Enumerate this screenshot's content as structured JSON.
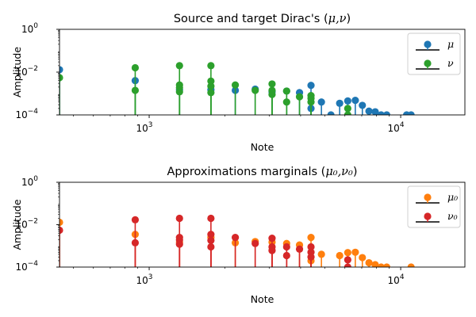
{
  "chart_data": [
    {
      "type": "stem",
      "title_main": "Source and target Dirac's (",
      "title_math": "μ,ν",
      "title_end": ")",
      "xlabel": "Note",
      "ylabel": "Amplitude",
      "xscale": "log",
      "yscale": "log",
      "xlim": [
        440,
        18000
      ],
      "ylim": [
        0.0001,
        1
      ],
      "xticks": [
        {
          "v": 1000,
          "base": "10",
          "exp": "3"
        },
        {
          "v": 10000,
          "base": "10",
          "exp": "4"
        }
      ],
      "yticks": [
        {
          "v": 0.0001,
          "base": "10",
          "exp": "−4"
        },
        {
          "v": 0.01,
          "base": "10",
          "exp": "−2"
        },
        {
          "v": 1,
          "base": "10",
          "exp": "0"
        }
      ],
      "legend_position": "top-right",
      "series": [
        {
          "name": "μ",
          "color": "#1f77b4",
          "points": [
            [
              440,
              0.013
            ],
            [
              880,
              0.004
            ],
            [
              1320,
              0.0015
            ],
            [
              1760,
              0.0015
            ],
            [
              2200,
              0.0014
            ],
            [
              2640,
              0.0016
            ],
            [
              3080,
              0.0012
            ],
            [
              3520,
              0.0013
            ],
            [
              3960,
              0.0011
            ],
            [
              4400,
              0.0024
            ],
            [
              4400,
              0.0002
            ],
            [
              4840,
              0.0004
            ],
            [
              5280,
              0.0001
            ],
            [
              5720,
              0.00035
            ],
            [
              6160,
              0.00045
            ],
            [
              6600,
              0.00048
            ],
            [
              7040,
              0.00028
            ],
            [
              7480,
              0.00015
            ],
            [
              7920,
              0.00014
            ],
            [
              8360,
              0.0001
            ],
            [
              8800,
              0.0001
            ],
            [
              10560,
              0.0001
            ],
            [
              11000,
              0.0001
            ]
          ]
        },
        {
          "name": "ν",
          "color": "#2ca02c",
          "points": [
            [
              440,
              0.0055
            ],
            [
              880,
              0.016
            ],
            [
              880,
              0.0014
            ],
            [
              1320,
              0.02
            ],
            [
              1320,
              0.0025
            ],
            [
              1320,
              0.0019
            ],
            [
              1320,
              0.0012
            ],
            [
              1760,
              0.02
            ],
            [
              1760,
              0.0038
            ],
            [
              1760,
              0.0022
            ],
            [
              1760,
              0.0011
            ],
            [
              2200,
              0.0025
            ],
            [
              2640,
              0.0014
            ],
            [
              3080,
              0.0028
            ],
            [
              3080,
              0.0014
            ],
            [
              3080,
              0.0009
            ],
            [
              3520,
              0.0013
            ],
            [
              3520,
              0.0004
            ],
            [
              3960,
              0.0007
            ],
            [
              4400,
              0.0008
            ],
            [
              4400,
              0.0006
            ],
            [
              4400,
              0.0004
            ],
            [
              6160,
              0.0002
            ],
            [
              6160,
              0.0001
            ]
          ]
        }
      ]
    },
    {
      "type": "stem",
      "title_main": "Approximations marginals (",
      "title_math": "μ₀,ν₀",
      "title_end": ")",
      "xlabel": "Note",
      "ylabel": "Amplitude",
      "xscale": "log",
      "yscale": "log",
      "xlim": [
        440,
        18000
      ],
      "ylim": [
        0.0001,
        1
      ],
      "xticks": [
        {
          "v": 1000,
          "base": "10",
          "exp": "3"
        },
        {
          "v": 10000,
          "base": "10",
          "exp": "4"
        }
      ],
      "yticks": [
        {
          "v": 0.0001,
          "base": "10",
          "exp": "−4"
        },
        {
          "v": 0.01,
          "base": "10",
          "exp": "−2"
        },
        {
          "v": 1,
          "base": "10",
          "exp": "0"
        }
      ],
      "legend_position": "top-right",
      "series": [
        {
          "name": "μ₀",
          "color": "#ff7f0e",
          "points": [
            [
              440,
              0.013
            ],
            [
              880,
              0.0035
            ],
            [
              1320,
              0.0015
            ],
            [
              1760,
              0.0025
            ],
            [
              2200,
              0.0014
            ],
            [
              2640,
              0.0016
            ],
            [
              3080,
              0.0015
            ],
            [
              3520,
              0.0013
            ],
            [
              3960,
              0.0011
            ],
            [
              4400,
              0.0025
            ],
            [
              4400,
              0.0002
            ],
            [
              4840,
              0.0004
            ],
            [
              5720,
              0.00035
            ],
            [
              6160,
              0.00048
            ],
            [
              6600,
              0.0005
            ],
            [
              7040,
              0.00028
            ],
            [
              7480,
              0.00016
            ],
            [
              7920,
              0.00013
            ],
            [
              8360,
              0.0001
            ],
            [
              8800,
              0.0001
            ],
            [
              11000,
              0.0001
            ]
          ]
        },
        {
          "name": "ν₀",
          "color": "#d62728",
          "points": [
            [
              440,
              0.0055
            ],
            [
              880,
              0.017
            ],
            [
              880,
              0.0014
            ],
            [
              1320,
              0.02
            ],
            [
              1320,
              0.0025
            ],
            [
              1320,
              0.0019
            ],
            [
              1320,
              0.0012
            ],
            [
              1760,
              0.02
            ],
            [
              1760,
              0.0035
            ],
            [
              1760,
              0.0018
            ],
            [
              1760,
              0.0009
            ],
            [
              2200,
              0.0025
            ],
            [
              2640,
              0.0013
            ],
            [
              3080,
              0.0023
            ],
            [
              3080,
              0.0009
            ],
            [
              3080,
              0.0006
            ],
            [
              3520,
              0.0009
            ],
            [
              3520,
              0.00035
            ],
            [
              3960,
              0.0007
            ],
            [
              4400,
              0.0009
            ],
            [
              4400,
              0.0005
            ],
            [
              4400,
              0.0003
            ],
            [
              6160,
              0.00022
            ],
            [
              6160,
              0.0001
            ]
          ]
        }
      ]
    }
  ]
}
